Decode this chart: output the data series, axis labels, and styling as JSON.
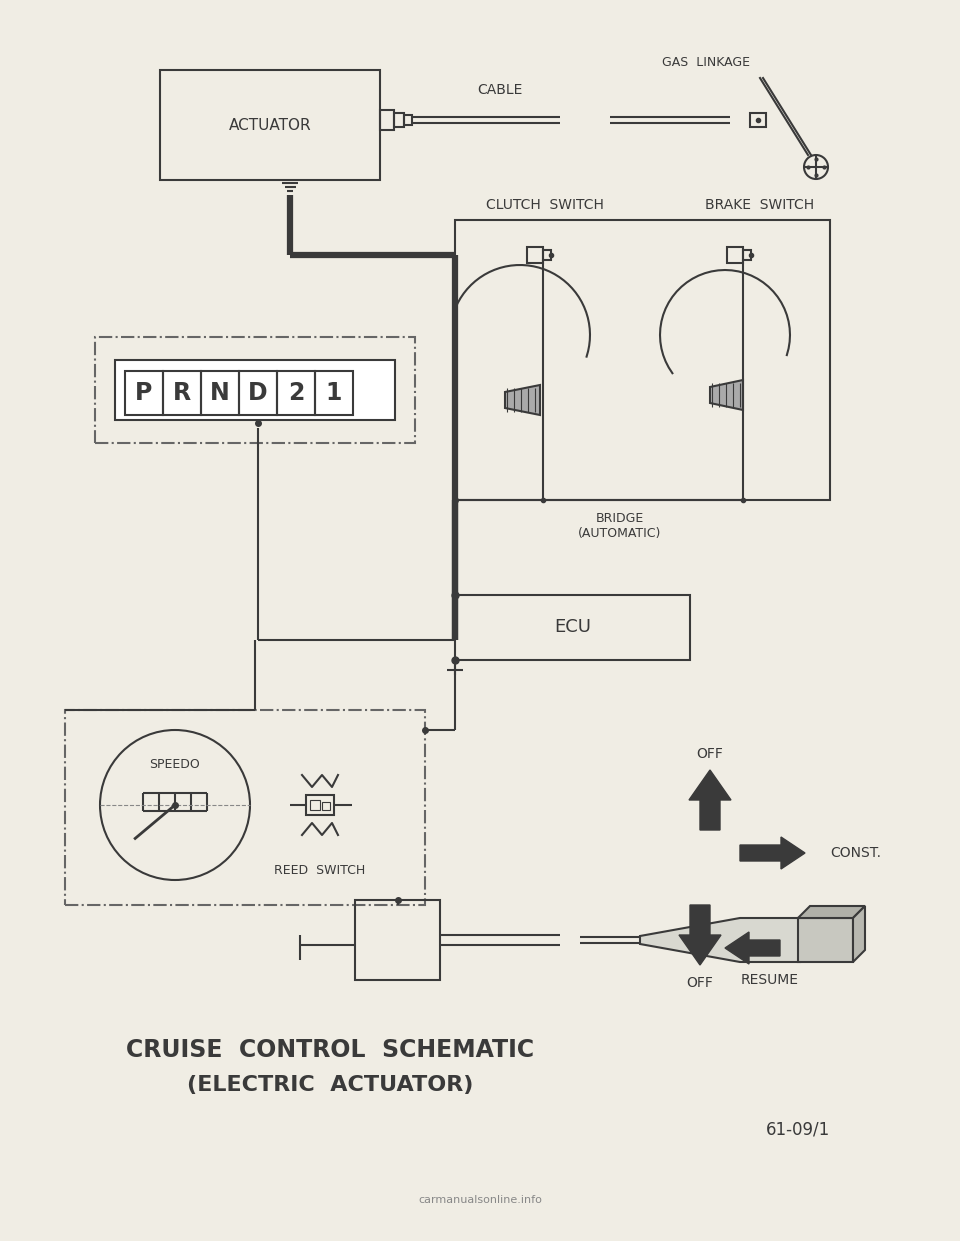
{
  "bg_color": "#f0ede4",
  "line_color": "#3a3a3a",
  "title1": "CRUISE  CONTROL  SCHEMATIC",
  "title2": "(ELECTRIC  ACTUATOR)",
  "page_ref": "61-09/1",
  "watermark": "carmanualsonline.info",
  "labels": {
    "actuator": "ACTUATOR",
    "cable": "CABLE",
    "gas_linkage": "GAS  LINKAGE",
    "clutch_switch": "CLUTCH  SWITCH",
    "brake_switch": "BRAKE  SWITCH",
    "bridge": "BRIDGE",
    "automatic": "(AUTOMATIC)",
    "ecu": "ECU",
    "speedo": "SPEEDO",
    "reed_switch": "REED  SWITCH",
    "off_top": "OFF",
    "const": "CONST.",
    "resume": "RESUME",
    "off_bottom": "OFF",
    "prnd21": [
      "P",
      "R",
      "N",
      "D",
      "2",
      "1"
    ]
  }
}
